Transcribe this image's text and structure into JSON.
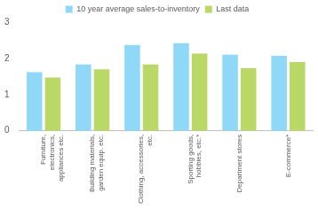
{
  "chart_data": {
    "type": "bar",
    "categories": [
      "Furniture, electronics, appliances etc.",
      "Building materials, garden equip. etc.",
      "Clothing, accessories, etc.",
      "Sporting goods, hobbies, etc.*",
      "Department stores",
      "E-commerce*"
    ],
    "series": [
      {
        "name": "10 year average sales-to-inventory",
        "color": "#8fd8f8",
        "values": [
          1.62,
          1.83,
          2.37,
          2.42,
          2.1,
          2.07
        ]
      },
      {
        "name": "Last data",
        "color": "#b9d866",
        "values": [
          1.47,
          1.7,
          1.83,
          2.13,
          1.73,
          1.9
        ]
      }
    ],
    "ylim": [
      0,
      3
    ],
    "yticks": [
      0,
      1,
      2,
      3
    ],
    "grid": false,
    "legend": "top"
  }
}
